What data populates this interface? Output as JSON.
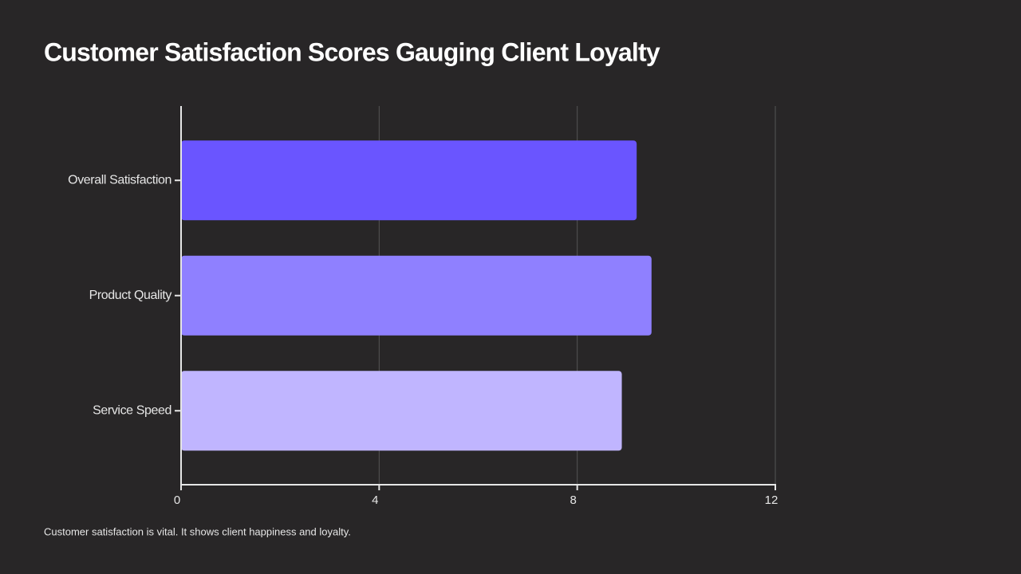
{
  "chart_data": {
    "type": "bar",
    "orientation": "horizontal",
    "title": "Customer Satisfaction Scores Gauging Client Loyalty",
    "categories": [
      "Overall Satisfaction",
      "Product Quality",
      "Service Speed"
    ],
    "values": [
      9.2,
      9.5,
      8.9
    ],
    "colors": [
      "#6a55ff",
      "#8f80ff",
      "#c0b5ff"
    ],
    "xlim": [
      0,
      12
    ],
    "xticks": [
      0,
      4,
      8,
      12
    ],
    "grid": true,
    "footnote": "Customer satisfaction is vital. It shows client happiness and loyalty."
  }
}
